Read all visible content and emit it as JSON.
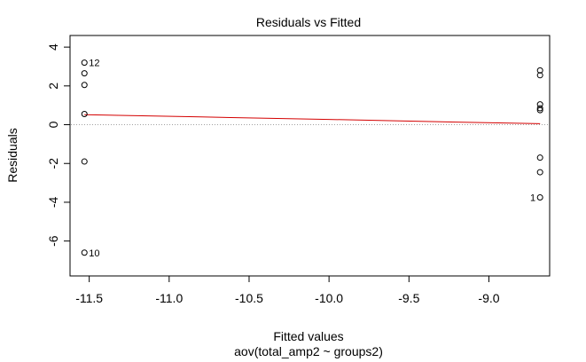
{
  "chart_data": {
    "type": "scatter",
    "title": "Residuals vs Fitted",
    "xlabel": "Fitted values",
    "xlabel_sub": "aov(total_amp2 ~ groups2)",
    "ylabel": "Residuals",
    "xlim": [
      -11.62,
      -8.62
    ],
    "ylim": [
      -7.8,
      4.6
    ],
    "x_ticks": [
      {
        "value": -11.5,
        "label": "-11.5"
      },
      {
        "value": -11.0,
        "label": "-11.0"
      },
      {
        "value": -10.5,
        "label": "-10.5"
      },
      {
        "value": -10.0,
        "label": "-10.0"
      },
      {
        "value": -9.5,
        "label": "-9.5"
      },
      {
        "value": -9.0,
        "label": "-9.0"
      }
    ],
    "y_ticks": [
      {
        "value": 4,
        "label": "4"
      },
      {
        "value": 2,
        "label": "2"
      },
      {
        "value": 0,
        "label": "0"
      },
      {
        "value": -2,
        "label": "-2"
      },
      {
        "value": -4,
        "label": "-4"
      },
      {
        "value": -6,
        "label": "-6"
      }
    ],
    "points": [
      {
        "x": -11.53,
        "y": 3.2,
        "label": "12"
      },
      {
        "x": -11.53,
        "y": 2.65
      },
      {
        "x": -11.53,
        "y": 2.05
      },
      {
        "x": -11.53,
        "y": 0.55
      },
      {
        "x": -11.53,
        "y": -1.9
      },
      {
        "x": -11.53,
        "y": -6.6,
        "label": "10"
      },
      {
        "x": -8.68,
        "y": 2.8
      },
      {
        "x": -8.68,
        "y": 2.55
      },
      {
        "x": -8.68,
        "y": 1.05
      },
      {
        "x": -8.68,
        "y": 0.85
      },
      {
        "x": -8.68,
        "y": 0.75
      },
      {
        "x": -8.68,
        "y": -1.7
      },
      {
        "x": -8.68,
        "y": -2.45
      },
      {
        "x": -8.68,
        "y": -3.75,
        "label": "1"
      }
    ],
    "smoother": {
      "color": "#d40000",
      "points": [
        {
          "x": -11.53,
          "y": 0.52
        },
        {
          "x": -10.8,
          "y": 0.4
        },
        {
          "x": -10.0,
          "y": 0.27
        },
        {
          "x": -9.3,
          "y": 0.15
        },
        {
          "x": -8.68,
          "y": 0.05
        }
      ]
    },
    "reference_line": {
      "y": 0,
      "style": "dotted",
      "color": "#a0a0a0"
    },
    "grid": false,
    "legend": "none"
  }
}
